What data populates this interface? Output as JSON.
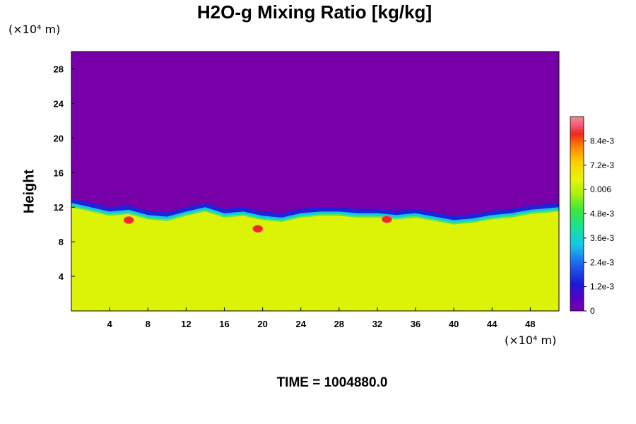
{
  "chart_data": {
    "type": "heatmap",
    "title": "H2O-g Mixing Ratio [kg/kg]",
    "ylabel": "Height",
    "xlabel": "",
    "x_unit": "(×10⁴ m)",
    "y_unit": "(×10⁴ m)",
    "xlim": [
      0,
      51
    ],
    "ylim": [
      0,
      30
    ],
    "x_ticks": [
      "4",
      "8",
      "12",
      "16",
      "20",
      "24",
      "28",
      "32",
      "36",
      "40",
      "44",
      "48"
    ],
    "y_ticks": [
      "4",
      "8",
      "12",
      "16",
      "20",
      "24",
      "28"
    ],
    "colorbar": {
      "range": [
        0,
        0.0096
      ],
      "tick_labels": [
        "0",
        "1.2e-3",
        "2.4e-3",
        "3.6e-3",
        "4.8e-3",
        "0.006",
        "7.2e-3",
        "8.4e-3"
      ],
      "tick_values": [
        0,
        0.0012,
        0.0024,
        0.0036,
        0.0048,
        0.006,
        0.0072,
        0.0084
      ]
    },
    "field": {
      "upper_value": 0,
      "lower_value": 0.0063,
      "moist_layer_top_y": [
        12.0,
        11.5,
        11.0,
        11.2,
        10.6,
        10.4,
        11.0,
        11.5,
        10.8,
        11.0,
        10.5,
        10.3,
        10.8,
        11.0,
        11.0,
        10.8,
        10.8,
        10.6,
        10.8,
        10.4,
        10.0,
        10.2,
        10.6,
        10.8,
        11.2,
        11.5
      ],
      "moist_layer_top_x": [
        0,
        2,
        4,
        6,
        8,
        10,
        12,
        14,
        16,
        18,
        20,
        22,
        24,
        26,
        28,
        30,
        32,
        34,
        36,
        38,
        40,
        42,
        44,
        46,
        48,
        51
      ],
      "local_maxima": [
        {
          "x": 6,
          "y": 10.5,
          "value": 0.0088
        },
        {
          "x": 19.5,
          "y": 9.5,
          "value": 0.0092
        },
        {
          "x": 33,
          "y": 10.6,
          "value": 0.0075
        }
      ]
    }
  },
  "time_label": "TIME = 1004880.0",
  "colors": {
    "upper": "#7700a8",
    "lower": "#dcf207",
    "band_blue": "#1e22d8",
    "band_cyan": "#16c8e0",
    "band_green": "#5ae84a",
    "max_red": "#f02a1a"
  }
}
